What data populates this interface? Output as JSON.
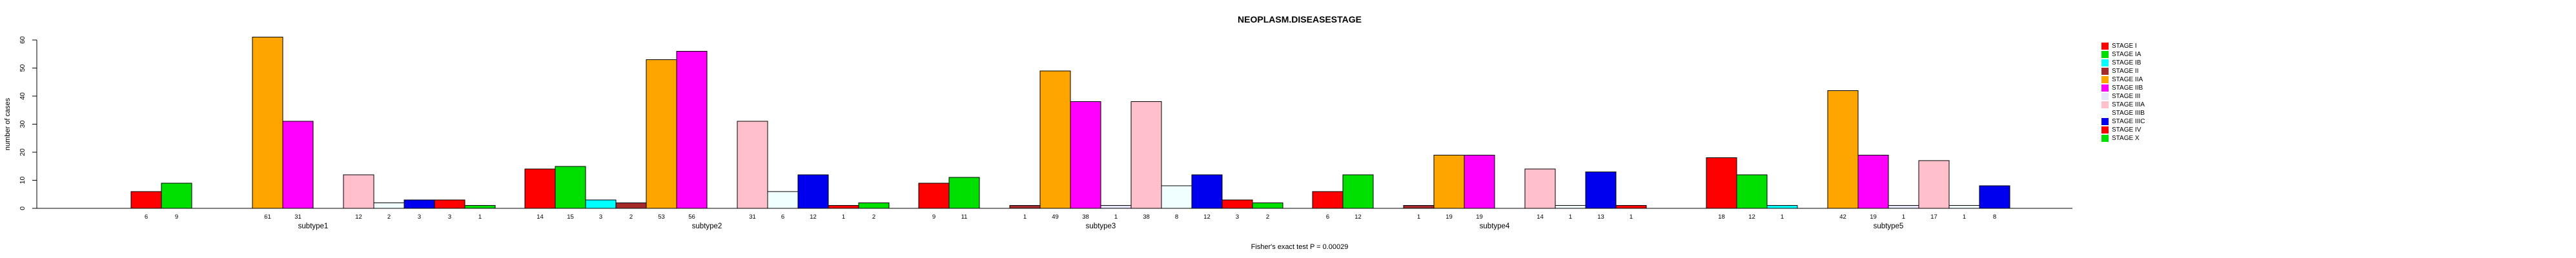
{
  "chart_data": {
    "type": "bar",
    "title": "NEOPLASM.DISEASESTAGE",
    "ylabel": "number of cases",
    "footer": "Fisher's exact test P = 0.00029",
    "ylim": [
      0,
      60
    ],
    "yticks": [
      0,
      10,
      20,
      30,
      40,
      50,
      60
    ],
    "grid": false,
    "legend_position": "top-right",
    "categories": [
      "subtype1",
      "subtype2",
      "subtype3",
      "subtype4",
      "subtype5"
    ],
    "series": [
      {
        "name": "STAGE I",
        "color": "#FF0000",
        "values": [
          6,
          14,
          9,
          6,
          18
        ]
      },
      {
        "name": "STAGE IA",
        "color": "#00E000",
        "values": [
          9,
          15,
          11,
          12,
          12
        ]
      },
      {
        "name": "STAGE IB",
        "color": "#00FFFF",
        "values": [
          0,
          3,
          0,
          0,
          1
        ]
      },
      {
        "name": "STAGE II",
        "color": "#A52A2A",
        "values": [
          0,
          2,
          1,
          1,
          0
        ]
      },
      {
        "name": "STAGE IIA",
        "color": "#FFA500",
        "values": [
          61,
          53,
          49,
          19,
          42
        ]
      },
      {
        "name": "STAGE IIB",
        "color": "#FF00FF",
        "values": [
          31,
          56,
          38,
          19,
          19
        ]
      },
      {
        "name": "STAGE III",
        "color": "#E6E6FA",
        "values": [
          0,
          0,
          1,
          0,
          1
        ]
      },
      {
        "name": "STAGE IIIA",
        "color": "#FFC0CB",
        "values": [
          12,
          31,
          38,
          14,
          17
        ]
      },
      {
        "name": "STAGE IIIB",
        "color": "#F0FFFF",
        "values": [
          2,
          6,
          8,
          1,
          1
        ]
      },
      {
        "name": "STAGE IIIC",
        "color": "#0000EE",
        "values": [
          3,
          12,
          12,
          13,
          8
        ]
      },
      {
        "name": "STAGE IV",
        "color": "#FF0000",
        "values": [
          3,
          1,
          3,
          1,
          0
        ]
      },
      {
        "name": "STAGE X",
        "color": "#00E000",
        "values": [
          1,
          2,
          2,
          0,
          0
        ]
      }
    ]
  }
}
